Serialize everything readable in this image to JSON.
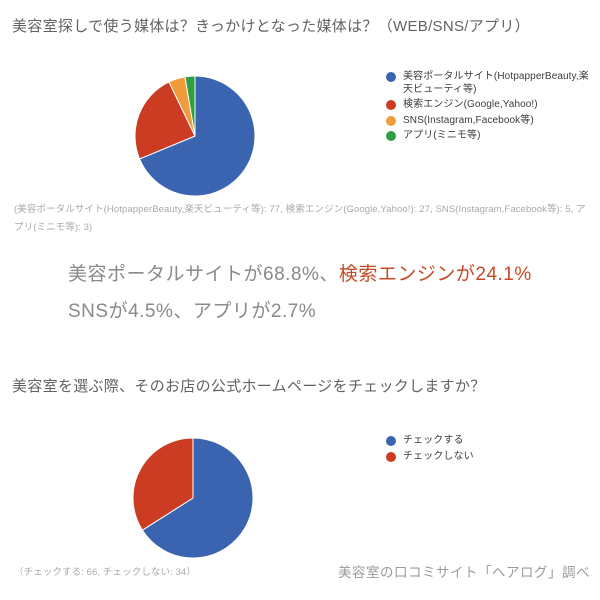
{
  "page": {
    "title1": "美容室探しで使う媒体は？きっかけとなった媒体は？（WEB/SNS/アプリ）",
    "title2": "美容室を選ぶ際、そのお店の公式ホームページをチェックしますか？",
    "caption1": "(美容ポータルサイト(HotpapperBeauty,楽天ビューティ等): 77, 検索エンジン(Google,Yahoo!): 27, SNS(Instagram,Facebook等): 5, アプリ(ミニモ等): 3)",
    "caption2": "（チェックする: 66, チェックしない: 34）",
    "summary": {
      "line1_gray": "美容ポータルサイトが68.8%、",
      "line1_red": "検索エンジンが24.1%",
      "line2": "SNSが4.5%、アプリが2.7%"
    },
    "footer": "美容室の口コミサイト「ヘアログ」調べ",
    "colors": {
      "blue": "#3b64b0",
      "red": "#cb3c22",
      "orange": "#f09c3b",
      "green": "#2e9e41",
      "summary_gray": "#8a8a8a",
      "summary_red": "#c74a27"
    }
  },
  "chart_data": [
    {
      "type": "pie",
      "title": "美容室探しで使う媒体は？きっかけとなった媒体は？（WEB/SNS/アプリ）",
      "labels": [
        "美容ポータルサイト(HotpapperBeauty,楽天ビューティ等)",
        "検索エンジン(Google,Yahoo!)",
        "SNS(Instagram,Facebook等)",
        "アプリ(ミニモ等)"
      ],
      "values": [
        77,
        27,
        5,
        3
      ],
      "percentages": [
        68.8,
        24.1,
        4.5,
        2.7
      ],
      "colors": [
        "#3b64b0",
        "#cb3c22",
        "#f09c3b",
        "#2e9e41"
      ],
      "legend_position": "right",
      "start_angle_deg": 0,
      "direction": "clockwise",
      "slice_border_color": "#ffffff"
    },
    {
      "type": "pie",
      "title": "美容室を選ぶ際、そのお店の公式ホームページをチェックしますか？",
      "labels": [
        "チェックする",
        "チェックしない"
      ],
      "values": [
        66,
        34
      ],
      "percentages": [
        66,
        34
      ],
      "colors": [
        "#3b64b0",
        "#cb3c22"
      ],
      "legend_position": "right",
      "start_angle_deg": 0,
      "direction": "clockwise",
      "slice_border_color": "#ffffff"
    }
  ]
}
